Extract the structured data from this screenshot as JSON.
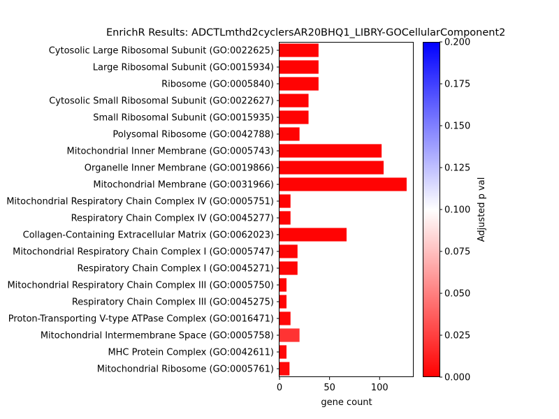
{
  "chart_data": {
    "type": "bar",
    "orientation": "horizontal",
    "title": "EnrichR Results: ADCTLmthd2cyclersAR20BHQ1_LIBRY-GOCellularComponent2",
    "xlabel": "gene count",
    "ylabel": "",
    "xlim": [
      0,
      134
    ],
    "x_ticks": [
      0,
      50,
      100
    ],
    "grid": false,
    "categories": [
      "Cytosolic Large Ribosomal Subunit (GO:0022625)",
      "Large Ribosomal Subunit (GO:0015934)",
      "Ribosome (GO:0005840)",
      "Cytosolic Small Ribosomal Subunit (GO:0022627)",
      "Small Ribosomal Subunit (GO:0015935)",
      "Polysomal Ribosome (GO:0042788)",
      "Mitochondrial Inner Membrane (GO:0005743)",
      "Organelle Inner Membrane (GO:0019866)",
      "Mitochondrial Membrane (GO:0031966)",
      "Mitochondrial Respiratory Chain Complex IV (GO:0005751)",
      "Respiratory Chain Complex IV (GO:0045277)",
      "Collagen-Containing Extracellular Matrix (GO:0062023)",
      "Mitochondrial Respiratory Chain Complex I (GO:0005747)",
      "Respiratory Chain Complex I (GO:0045271)",
      "Mitochondrial Respiratory Chain Complex III (GO:0005750)",
      "Respiratory Chain Complex III (GO:0045275)",
      "Proton-Transporting V-type ATPase Complex (GO:0016471)",
      "Mitochondrial Intermembrane Space (GO:0005758)",
      "MHC Protein Complex (GO:0042611)",
      "Mitochondrial Ribosome (GO:0005761)"
    ],
    "values": [
      39,
      39,
      39,
      29,
      29,
      20,
      102,
      104,
      127,
      11,
      11,
      67,
      18,
      18,
      7,
      7,
      11,
      20,
      7,
      10
    ],
    "adjusted_p": [
      0.001,
      0.001,
      0.001,
      0.001,
      0.001,
      0.001,
      0.001,
      0.001,
      0.001,
      0.001,
      0.001,
      0.001,
      0.002,
      0.002,
      0.002,
      0.002,
      0.003,
      0.02,
      0.003,
      0.004
    ],
    "colorbar": {
      "label": "Adjusted p val",
      "min": 0.0,
      "max": 0.2,
      "ticks": [
        "0.000",
        "0.025",
        "0.050",
        "0.075",
        "0.100",
        "0.125",
        "0.150",
        "0.175",
        "0.200"
      ],
      "colormap": "bwr_r",
      "colors": {
        "low": "#ff0000",
        "mid": "#ffffff",
        "high": "#0000ff"
      }
    }
  }
}
